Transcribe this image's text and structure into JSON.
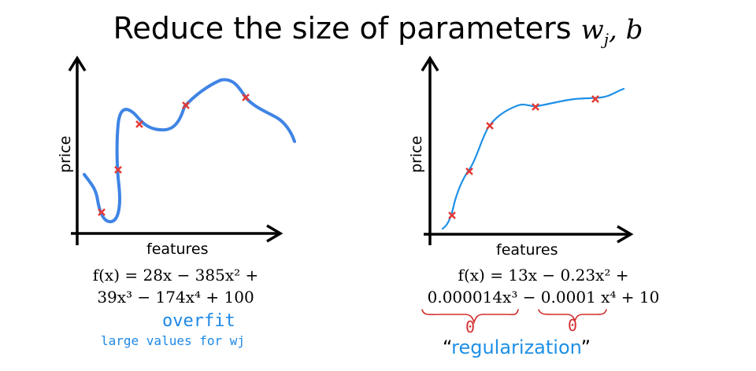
{
  "title": {
    "text": "Reduce the size of parameters",
    "math_var": "w",
    "math_sub": "j",
    "math_tail": ", b"
  },
  "left_plot": {
    "ylabel": "price",
    "xlabel": "features",
    "eq_line1": "f(x) = 28x − 385x² +",
    "eq_line2": "39x³ − 174x⁴ + 100",
    "note_title": "overfit",
    "note_sub": "large values for wj"
  },
  "right_plot": {
    "ylabel": "price",
    "xlabel": "features",
    "eq_line1": "f(x) = 13x − 0.23x² +",
    "eq_line2": "0.000014x³ − 0.0001 x⁴ + 10",
    "zero_a": "0",
    "zero_b": "0",
    "caption_open": "“",
    "caption": "regularization",
    "caption_close": "”"
  },
  "colors": {
    "curve": "#3f84e5",
    "curve_right": "#1e90e6",
    "marker": "#e53935",
    "annot": "#d32f2f",
    "axis": "#000000"
  }
}
